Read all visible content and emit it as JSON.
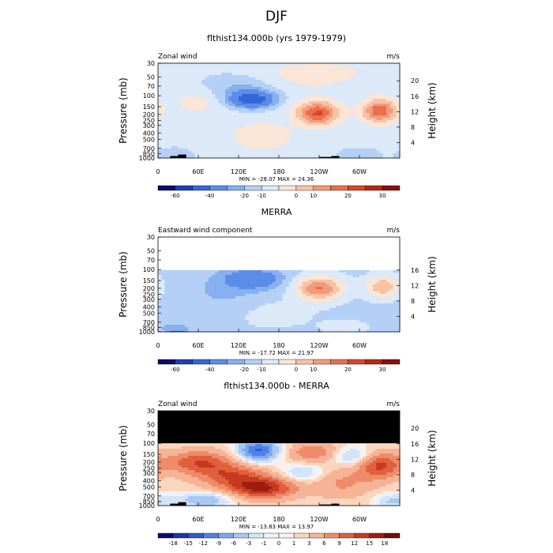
{
  "figure": {
    "title": "DJF"
  },
  "scale1": [
    "-60",
    "-40",
    "-20",
    "-10",
    "0",
    "10",
    "20",
    "30"
  ],
  "scale2": [
    "-18",
    "-15",
    "-12",
    "-9",
    "-6",
    "-3",
    "-1",
    "0",
    "1",
    "3",
    "6",
    "9",
    "12",
    "15",
    "18"
  ],
  "colors": {
    "ramp1": [
      "#0b0b6e",
      "#1f3fb3",
      "#3466d9",
      "#5b8de8",
      "#86b0f0",
      "#b4d0f6",
      "#dbe9f9",
      "#fbe5d6",
      "#f7c3a4",
      "#f29b78",
      "#e8704d",
      "#d84728",
      "#b72712",
      "#8a0f0a"
    ],
    "ramp2": [
      "#0b0b6e",
      "#1a35a8",
      "#2f5ad0",
      "#4f82e6",
      "#7ba7ee",
      "#a8c8f4",
      "#d3e4f8",
      "#ecf3fb",
      "#fdf0e6",
      "#fbd6bf",
      "#f6b395",
      "#ee8b68",
      "#e15f3d",
      "#c73a1f",
      "#9e1d0f",
      "#6e0c08"
    ],
    "terrain": "#000000"
  },
  "chart_data": [
    {
      "type": "heatmap",
      "title": "flthist134.000b (yrs 1979-1979)",
      "left_label": "Zonal wind",
      "right_label": "m/s",
      "ylabel": "Pressure (mb)",
      "y2label": "Height (km)",
      "pressure_ticks": [
        "30",
        "50",
        "70",
        "100",
        "150",
        "200",
        "250",
        "300",
        "400",
        "500",
        "700",
        "850",
        "1000"
      ],
      "height_ticks": [
        "20",
        "16",
        "12",
        "8",
        "4"
      ],
      "lon_ticks": [
        "0",
        "60E",
        "120E",
        "180",
        "120W",
        "60W"
      ],
      "min_max": "MIN = -28.07   MAX = 24.36",
      "min": -28.07,
      "max": 24.36,
      "ylim_mb": [
        30,
        1000
      ],
      "xlim_lon": [
        0,
        360
      ],
      "levels": [
        -60,
        -40,
        -20,
        -10,
        -5,
        0,
        5,
        10,
        15,
        20,
        25,
        30
      ],
      "blobs": [
        {
          "lon": 140,
          "p": 115,
          "amp": -28,
          "sx": 24,
          "sy": 0.22
        },
        {
          "lon": 120,
          "p": 70,
          "amp": -8,
          "sx": 45,
          "sy": 0.35
        },
        {
          "lon": 195,
          "p": 55,
          "amp": 4,
          "sx": 60,
          "sy": 0.4
        },
        {
          "lon": 238,
          "p": 190,
          "amp": 24,
          "sx": 22,
          "sy": 0.3
        },
        {
          "lon": 330,
          "p": 175,
          "amp": 22,
          "sx": 18,
          "sy": 0.3
        },
        {
          "lon": 155,
          "p": 450,
          "amp": 8,
          "sx": 30,
          "sy": 0.35
        },
        {
          "lon": 60,
          "p": 120,
          "amp": 5,
          "sx": 30,
          "sy": 0.4
        },
        {
          "lon": 255,
          "p": 40,
          "amp": 3,
          "sx": 50,
          "sy": 0.3
        },
        {
          "lon": 25,
          "p": 900,
          "amp": -6,
          "sx": 20,
          "sy": 0.2
        },
        {
          "lon": 300,
          "p": 900,
          "amp": -5,
          "sx": 25,
          "sy": 0.2
        }
      ],
      "background": 2,
      "top_blank_mb": 0,
      "terrain": [
        [
          18,
          30,
          930
        ],
        [
          30,
          42,
          880
        ],
        [
          240,
          258,
          960
        ],
        [
          258,
          270,
          930
        ]
      ]
    },
    {
      "type": "heatmap",
      "title": "MERRA",
      "left_label": "Eastward wind component",
      "right_label": "m/s",
      "ylabel": "Pressure (mb)",
      "y2label": "Height (km)",
      "pressure_ticks": [
        "30",
        "50",
        "70",
        "100",
        "150",
        "200",
        "250",
        "300",
        "400",
        "500",
        "700",
        "850",
        "1000"
      ],
      "height_ticks": [
        "16",
        "12",
        "8",
        "4"
      ],
      "lon_ticks": [
        "0",
        "60E",
        "120E",
        "180",
        "120W",
        "60W"
      ],
      "min_max": "MIN = -17.72   MAX = 21.97",
      "min": -17.72,
      "max": 21.97,
      "ylim_mb": [
        30,
        1000
      ],
      "xlim_lon": [
        0,
        360
      ],
      "levels": [
        -60,
        -40,
        -20,
        -10,
        -5,
        0,
        5,
        10,
        15,
        20,
        25,
        30
      ],
      "blobs": [
        {
          "lon": 140,
          "p": 140,
          "amp": -17,
          "sx": 30,
          "sy": 0.25
        },
        {
          "lon": 240,
          "p": 200,
          "amp": 22,
          "sx": 25,
          "sy": 0.32
        },
        {
          "lon": 335,
          "p": 190,
          "amp": 16,
          "sx": 18,
          "sy": 0.3
        },
        {
          "lon": 100,
          "p": 250,
          "amp": -4,
          "sx": 50,
          "sy": 0.5
        },
        {
          "lon": 170,
          "p": 500,
          "amp": 4,
          "sx": 40,
          "sy": 0.4
        },
        {
          "lon": 25,
          "p": 900,
          "amp": -5,
          "sx": 22,
          "sy": 0.2
        },
        {
          "lon": 280,
          "p": 850,
          "amp": 3,
          "sx": 30,
          "sy": 0.25
        }
      ],
      "background": -1.5,
      "top_blank_mb": 100,
      "terrain": [
        [
          18,
          40,
          980
        ]
      ]
    },
    {
      "type": "heatmap",
      "title": "flthist134.000b - MERRA",
      "left_label": "Zonal wind",
      "right_label": "m/s",
      "ylabel": "Pressure (mb)",
      "y2label": "Height (km)",
      "pressure_ticks": [
        "30",
        "50",
        "70",
        "100",
        "150",
        "200",
        "250",
        "300",
        "400",
        "500",
        "700",
        "850",
        "1000"
      ],
      "height_ticks": [
        "20",
        "16",
        "12",
        "8",
        "4"
      ],
      "lon_ticks": [
        "0",
        "60E",
        "120E",
        "180",
        "120W",
        "60W"
      ],
      "min_max": "MIN = -13.83   MAX = 13.97",
      "min": -13.83,
      "max": 13.97,
      "ylim_mb": [
        30,
        1000
      ],
      "xlim_lon": [
        0,
        360
      ],
      "levels": [
        -18,
        -15,
        -12,
        -9,
        -6,
        -3,
        -1,
        0,
        1,
        3,
        6,
        9,
        12,
        15,
        18
      ],
      "blobs": [
        {
          "lon": 150,
          "p": 130,
          "amp": -14,
          "sx": 22,
          "sy": 0.28
        },
        {
          "lon": 60,
          "p": 200,
          "amp": 10,
          "sx": 35,
          "sy": 0.3
        },
        {
          "lon": 155,
          "p": 520,
          "amp": 14,
          "sx": 35,
          "sy": 0.28
        },
        {
          "lon": 110,
          "p": 330,
          "amp": 9,
          "sx": 35,
          "sy": 0.3
        },
        {
          "lon": 230,
          "p": 140,
          "amp": 7,
          "sx": 28,
          "sy": 0.25
        },
        {
          "lon": 330,
          "p": 230,
          "amp": 11,
          "sx": 22,
          "sy": 0.35
        },
        {
          "lon": 215,
          "p": 300,
          "amp": -5,
          "sx": 25,
          "sy": 0.25
        },
        {
          "lon": 275,
          "p": 430,
          "amp": 5,
          "sx": 30,
          "sy": 0.4
        },
        {
          "lon": 70,
          "p": 820,
          "amp": -7,
          "sx": 30,
          "sy": 0.2
        },
        {
          "lon": 290,
          "p": 160,
          "amp": -6,
          "sx": 22,
          "sy": 0.25
        },
        {
          "lon": 350,
          "p": 850,
          "amp": -5,
          "sx": 20,
          "sy": 0.2
        }
      ],
      "background": 1.5,
      "top_blank_mb": 100,
      "black_top": true,
      "terrain": [
        [
          18,
          30,
          930
        ],
        [
          30,
          42,
          880
        ],
        [
          240,
          258,
          960
        ],
        [
          258,
          270,
          930
        ]
      ]
    }
  ]
}
